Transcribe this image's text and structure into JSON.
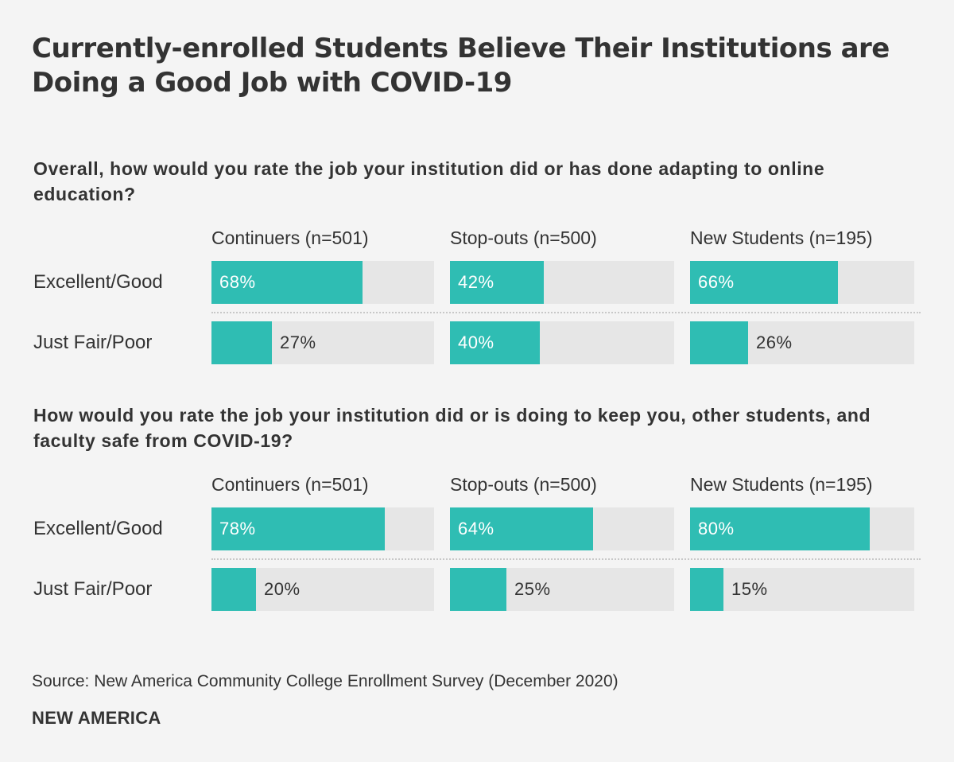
{
  "title": "Currently-enrolled Students Believe Their Institutions are Doing a Good Job with COVID-19",
  "source": "Source: New America Community College Enrollment Survey (December 2020)",
  "logo_text": "NEW AMERICA",
  "colors": {
    "bar": "#2fbdb3",
    "track": "#e6e6e6",
    "background": "#f4f4f4",
    "text": "#333333"
  },
  "chart_data": [
    {
      "type": "bar",
      "title": "Overall, how would you rate the job your institution did or has done adapting to online education?",
      "groups": [
        "Continuers (n=501)",
        "Stop-outs (n=500)",
        "New Students (n=195)"
      ],
      "categories": [
        "Excellent/Good",
        "Just Fair/Poor"
      ],
      "unit": "%",
      "ylim": [
        0,
        100
      ],
      "series": [
        {
          "values": [
            68,
            27
          ]
        },
        {
          "values": [
            42,
            40
          ]
        },
        {
          "values": [
            66,
            26
          ]
        }
      ]
    },
    {
      "type": "bar",
      "title": "How would you rate the job your institution did or is doing to keep you, other students, and faculty safe from COVID-19?",
      "groups": [
        "Continuers (n=501)",
        "Stop-outs (n=500)",
        "New Students (n=195)"
      ],
      "categories": [
        "Excellent/Good",
        "Just Fair/Poor"
      ],
      "unit": "%",
      "ylim": [
        0,
        100
      ],
      "series": [
        {
          "values": [
            78,
            20
          ]
        },
        {
          "values": [
            64,
            25
          ]
        },
        {
          "values": [
            80,
            15
          ]
        }
      ]
    }
  ]
}
